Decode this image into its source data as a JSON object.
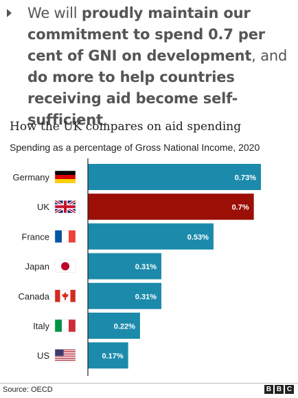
{
  "quote": {
    "segments": [
      {
        "text": "We will ",
        "bold": false
      },
      {
        "text": "proudly maintain our commitment to spend 0.7 per cent of GNI on development",
        "bold": true
      },
      {
        "text": ", and ",
        "bold": false
      },
      {
        "text": "do more to help countries receiving aid become self-sufficient",
        "bold": true
      },
      {
        "text": ".",
        "bold": false
      }
    ]
  },
  "chart_data": {
    "type": "bar",
    "orientation": "horizontal",
    "title": "How the UK compares on aid spending",
    "subtitle": "Spending as a percentage of Gross National Income, 2020",
    "categories": [
      "Germany",
      "UK",
      "France",
      "Japan",
      "Canada",
      "Italy",
      "US"
    ],
    "values": [
      0.73,
      0.7,
      0.53,
      0.31,
      0.31,
      0.22,
      0.17
    ],
    "value_labels": [
      "0.73%",
      "0.7%",
      "0.53%",
      "0.31%",
      "0.31%",
      "0.22%",
      "0.17%"
    ],
    "flags": [
      "germany-flag",
      "uk-flag",
      "france-flag",
      "japan-flag",
      "canada-flag",
      "italy-flag",
      "us-flag"
    ],
    "xlim": [
      0,
      0.8
    ],
    "grid": false,
    "colors": {
      "default": "#1c8bab",
      "highlight": "#9b0f06",
      "highlight_category": "UK"
    }
  },
  "footer": {
    "source": "Source: OECD",
    "logo_letters": [
      "B",
      "B",
      "C"
    ]
  }
}
